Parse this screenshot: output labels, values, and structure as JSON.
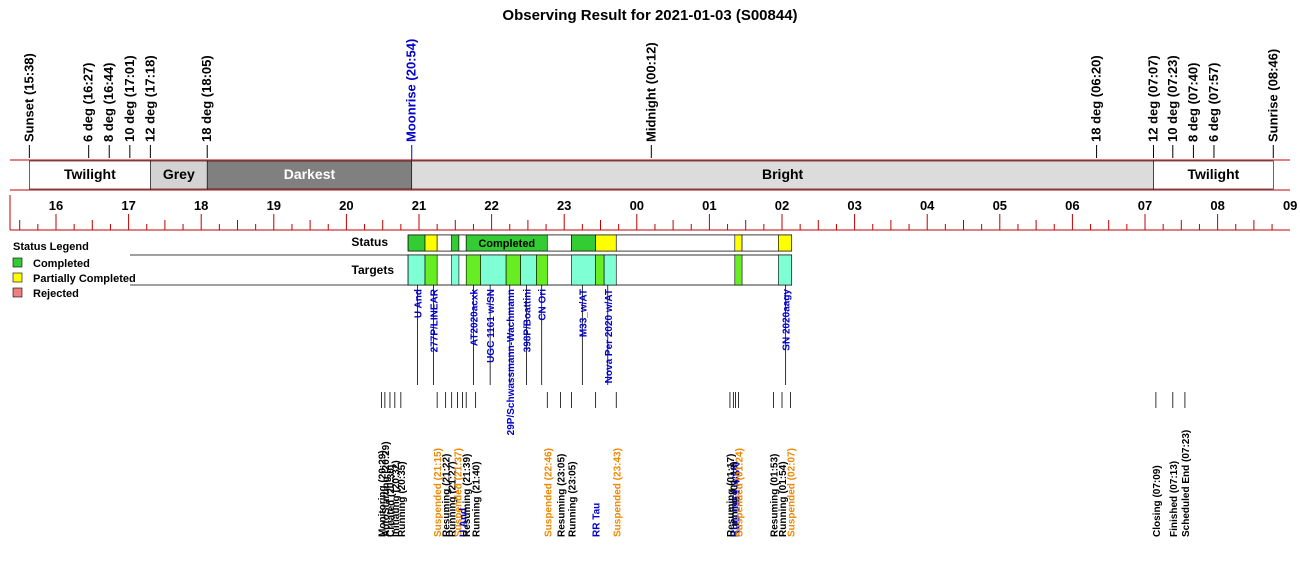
{
  "title": "Observing Result for 2021-01-03 (S00844)",
  "colors": {
    "red_line": "#c00000",
    "twilight": "#ffffff",
    "grey": "#d3d3d3",
    "darkest": "#808080",
    "bright": "#dcdcdc",
    "completed": "#33cc33",
    "partial": "#ffff00",
    "rejected": "#f08080",
    "target_fill": "#7fffd4",
    "target_green": "#66ee22",
    "moon_blue": "#0000cc",
    "suspend_orange": "#ee8800",
    "target_label": "#0000cc"
  },
  "time_axis": {
    "start_hour": 15.5,
    "end_hour": 33.0,
    "hour_labels": [
      {
        "h": 16,
        "label": "16"
      },
      {
        "h": 17,
        "label": "17"
      },
      {
        "h": 18,
        "label": "18"
      },
      {
        "h": 19,
        "label": "19"
      },
      {
        "h": 20,
        "label": "20"
      },
      {
        "h": 21,
        "label": "21"
      },
      {
        "h": 22,
        "label": "22"
      },
      {
        "h": 23,
        "label": "23"
      },
      {
        "h": 24,
        "label": "00"
      },
      {
        "h": 25,
        "label": "01"
      },
      {
        "h": 26,
        "label": "02"
      },
      {
        "h": 27,
        "label": "03"
      },
      {
        "h": 28,
        "label": "04"
      },
      {
        "h": 29,
        "label": "05"
      },
      {
        "h": 30,
        "label": "06"
      },
      {
        "h": 31,
        "label": "07"
      },
      {
        "h": 32,
        "label": "08"
      },
      {
        "h": 33,
        "label": "09"
      }
    ]
  },
  "sky_events": [
    {
      "h": 15.633,
      "label": "Sunset (15:38)",
      "kind": "black"
    },
    {
      "h": 16.45,
      "label": "6 deg (16:27)",
      "kind": "black"
    },
    {
      "h": 16.733,
      "label": "8 deg (16:44)",
      "kind": "black"
    },
    {
      "h": 17.017,
      "label": "10 deg (17:01)",
      "kind": "black"
    },
    {
      "h": 17.3,
      "label": "12 deg (17:18)",
      "kind": "black"
    },
    {
      "h": 18.083,
      "label": "18 deg (18:05)",
      "kind": "black"
    },
    {
      "h": 20.9,
      "label": "Moonrise (20:54)",
      "kind": "blue"
    },
    {
      "h": 24.2,
      "label": "Midnight (00:12)",
      "kind": "black"
    },
    {
      "h": 30.333,
      "label": "18 deg (06:20)",
      "kind": "black"
    },
    {
      "h": 31.117,
      "label": "12 deg (07:07)",
      "kind": "black"
    },
    {
      "h": 31.383,
      "label": "10 deg (07:23)",
      "kind": "black"
    },
    {
      "h": 31.667,
      "label": "8 deg (07:40)",
      "kind": "black"
    },
    {
      "h": 31.95,
      "label": "6 deg (07:57)",
      "kind": "black"
    },
    {
      "h": 32.767,
      "label": "Sunrise (08:46)",
      "kind": "black"
    }
  ],
  "sky_bands": [
    {
      "from": 15.633,
      "to": 17.3,
      "label": "Twilight",
      "fill": "#ffffff",
      "text": "#000000"
    },
    {
      "from": 17.3,
      "to": 18.083,
      "label": "Grey",
      "fill": "#d3d3d3",
      "text": "#000000"
    },
    {
      "from": 18.083,
      "to": 20.9,
      "label": "Darkest",
      "fill": "#808080",
      "text": "#ffffff"
    },
    {
      "from": 20.9,
      "to": 31.117,
      "label": "Bright",
      "fill": "#dcdcdc",
      "text": "#000000"
    },
    {
      "from": 31.117,
      "to": 32.767,
      "label": "Twilight",
      "fill": "#ffffff",
      "text": "#000000"
    }
  ],
  "legend": {
    "title": "Status Legend",
    "items": [
      {
        "label": "Completed",
        "color": "#33cc33"
      },
      {
        "label": "Partially Completed",
        "color": "#ffff00"
      },
      {
        "label": "Rejected",
        "color": "#f08080"
      }
    ]
  },
  "rows": {
    "status": "Status",
    "targets": "Targets"
  },
  "status_blocks": [
    {
      "from": 20.85,
      "to": 21.083,
      "color": "#33cc33",
      "label": ""
    },
    {
      "from": 21.083,
      "to": 21.25,
      "color": "#ffff00",
      "label": ""
    },
    {
      "from": 21.25,
      "to": 21.45,
      "color": "#ffffff",
      "label": ""
    },
    {
      "from": 21.45,
      "to": 21.55,
      "color": "#33cc33",
      "label": ""
    },
    {
      "from": 21.55,
      "to": 21.65,
      "color": "#ffffff",
      "label": ""
    },
    {
      "from": 21.65,
      "to": 22.767,
      "color": "#33cc33",
      "label": "Completed"
    },
    {
      "from": 22.767,
      "to": 23.1,
      "color": "#ffffff",
      "label": ""
    },
    {
      "from": 23.1,
      "to": 23.433,
      "color": "#33cc33",
      "label": ""
    },
    {
      "from": 23.433,
      "to": 23.717,
      "color": "#ffff00",
      "label": ""
    },
    {
      "from": 23.717,
      "to": 25.35,
      "color": "#ffffff",
      "label": ""
    },
    {
      "from": 25.35,
      "to": 25.45,
      "color": "#ffff00",
      "label": ""
    },
    {
      "from": 25.45,
      "to": 25.95,
      "color": "#ffffff",
      "label": ""
    },
    {
      "from": 25.95,
      "to": 26.133,
      "color": "#ffff00",
      "label": ""
    }
  ],
  "target_blocks": [
    {
      "from": 20.85,
      "to": 21.083,
      "color": "#7fffd4"
    },
    {
      "from": 21.083,
      "to": 21.25,
      "color": "#66ee22"
    },
    {
      "from": 21.45,
      "to": 21.55,
      "color": "#7fffd4"
    },
    {
      "from": 21.65,
      "to": 21.85,
      "color": "#66ee22"
    },
    {
      "from": 21.85,
      "to": 22.2,
      "color": "#7fffd4"
    },
    {
      "from": 22.2,
      "to": 22.4,
      "color": "#66ee22"
    },
    {
      "from": 22.4,
      "to": 22.617,
      "color": "#7fffd4"
    },
    {
      "from": 22.617,
      "to": 22.767,
      "color": "#66ee22"
    },
    {
      "from": 23.1,
      "to": 23.433,
      "color": "#7fffd4"
    },
    {
      "from": 23.433,
      "to": 23.55,
      "color": "#66ee22"
    },
    {
      "from": 23.55,
      "to": 23.717,
      "color": "#7fffd4"
    },
    {
      "from": 25.35,
      "to": 25.45,
      "color": "#66ee22"
    },
    {
      "from": 25.95,
      "to": 26.133,
      "color": "#7fffd4"
    }
  ],
  "target_labels": [
    {
      "h": 20.98,
      "label": "U And"
    },
    {
      "h": 21.2,
      "label": "277P/LINEAR"
    },
    {
      "h": 21.75,
      "label": "AT2020acxk"
    },
    {
      "h": 21.98,
      "label": "UGC 1161 w/SN"
    },
    {
      "h": 22.25,
      "label": "29P/Schwassmann-Wachmann"
    },
    {
      "h": 22.48,
      "label": "398P/Boattini"
    },
    {
      "h": 22.69,
      "label": "CN Ori"
    },
    {
      "h": 23.25,
      "label": "M33_w/AT"
    },
    {
      "h": 23.6,
      "label": "Nova Per 2020 w/AT"
    },
    {
      "h": 26.05,
      "label": "SN 2020aagy"
    }
  ],
  "bottom_events": [
    {
      "h": 20.483,
      "label": "Monitoring (20:29)",
      "color": "#000000"
    },
    {
      "h": 20.53,
      "label": "AutoStarting (20:29)",
      "color": "#000000"
    },
    {
      "h": 20.6,
      "label": "Created (20:30)",
      "color": "#000000"
    },
    {
      "h": 20.667,
      "label": "Initiating (20:32)",
      "color": "#000000"
    },
    {
      "h": 20.75,
      "label": "Running (20:35)",
      "color": "#000000"
    },
    {
      "h": 21.25,
      "label": "Suspended (21:15)",
      "color": "#ee8800"
    },
    {
      "h": 21.367,
      "label": "Resuming (21:22)",
      "color": "#000000"
    },
    {
      "h": 21.45,
      "label": "Running (21:27)",
      "color": "#000000"
    },
    {
      "h": 21.53,
      "label": "Suspended (21:37)",
      "color": "#ee8800"
    },
    {
      "h": 21.6,
      "label": "U And",
      "color": "#0000cc"
    },
    {
      "h": 21.65,
      "label": "Resuming (21:39)",
      "color": "#000000"
    },
    {
      "h": 21.78,
      "label": "Running (21:40)",
      "color": "#000000"
    },
    {
      "h": 22.767,
      "label": "Suspended (22:46)",
      "color": "#ee8800"
    },
    {
      "h": 22.95,
      "label": "Resuming (23:05)",
      "color": "#000000"
    },
    {
      "h": 23.1,
      "label": "Running (23:05)",
      "color": "#000000"
    },
    {
      "h": 23.433,
      "label": "RR Tau",
      "color": "#0000cc"
    },
    {
      "h": 23.717,
      "label": "Suspended (23:43)",
      "color": "#ee8800"
    },
    {
      "h": 25.283,
      "label": "Resuming (01:17)",
      "color": "#000000"
    },
    {
      "h": 25.33,
      "label": "Running (01:18)",
      "color": "#000000"
    },
    {
      "h": 25.36,
      "label": "KUG 0959 w/SN",
      "color": "#0000cc"
    },
    {
      "h": 25.4,
      "label": "Suspended (01:24)",
      "color": "#ee8800"
    },
    {
      "h": 25.883,
      "label": "Resuming (01:53)",
      "color": "#000000"
    },
    {
      "h": 26.0,
      "label": "Running (01:54)",
      "color": "#000000"
    },
    {
      "h": 26.117,
      "label": "Suspended (02:07)",
      "color": "#ee8800"
    },
    {
      "h": 31.15,
      "label": "Closing (07:09)",
      "color": "#000000"
    },
    {
      "h": 31.383,
      "label": "Finished (07:13)",
      "color": "#000000"
    },
    {
      "h": 31.55,
      "label": "Scheduled End (07:23)",
      "color": "#000000"
    }
  ]
}
